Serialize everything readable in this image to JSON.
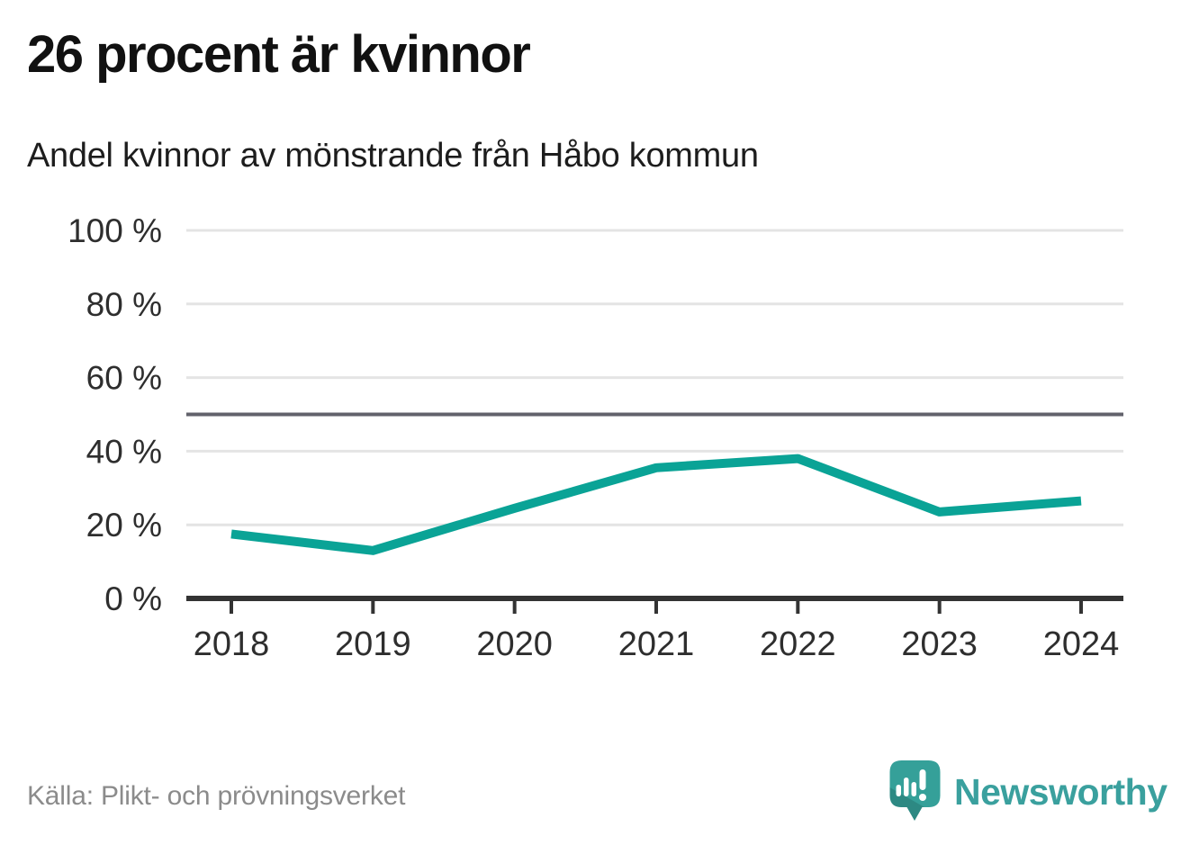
{
  "header": {
    "title": "26 procent är kvinnor",
    "subtitle": "Andel kvinnor av mönstrande från Håbo kommun"
  },
  "footer": {
    "source": "Källa: Plikt- och prövningsverket",
    "brand": "Newsworthy",
    "brand_color": "#3aa09e",
    "logo_color": "#35a099",
    "logo_icon": "newsworthy-speech-bubble-bar-chart-icon"
  },
  "chart_data": {
    "type": "line",
    "title": "26 procent är kvinnor",
    "subtitle": "Andel kvinnor av mönstrande från Håbo kommun",
    "x": [
      2018,
      2019,
      2020,
      2021,
      2022,
      2023,
      2024
    ],
    "xtick_labels": [
      "2018",
      "2019",
      "2020",
      "2021",
      "2022",
      "2023",
      "2024"
    ],
    "series": [
      {
        "name": "andel-kvinnor",
        "values": [
          17.5,
          13,
          24.5,
          35.5,
          38,
          23.5,
          26.5
        ]
      }
    ],
    "xlabel": "",
    "ylabel": "",
    "ylim": [
      0,
      100
    ],
    "yticks": [
      0,
      20,
      40,
      60,
      80,
      100
    ],
    "ytick_labels": [
      "0 %",
      "20 %",
      "40 %",
      "60 %",
      "80 %",
      "100 %"
    ],
    "reference_line": 50,
    "grid": "horizontal",
    "legend": "none",
    "colors": {
      "line": "#0aa396",
      "grid": "#e4e4e4",
      "reference": "#62626b",
      "axis": "#333333",
      "label": "#2e2e2e"
    }
  }
}
